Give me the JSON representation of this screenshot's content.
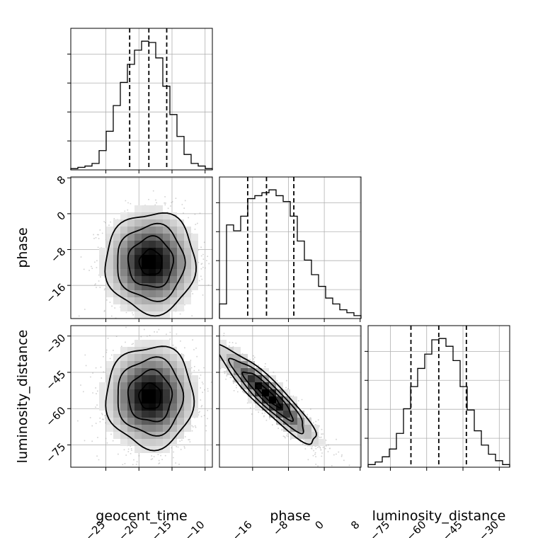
{
  "chart_data": {
    "type": "corner",
    "parameters": [
      "geocent_time",
      "phase",
      "luminosity_distance"
    ],
    "axis_labels": {
      "x": [
        "geocent_time",
        "phase",
        "luminosity_distance"
      ],
      "y": [
        "phase",
        "luminosity_distance"
      ]
    },
    "ranges": [
      [
        -30.3,
        -8.9
      ],
      [
        -23.4,
        8.2
      ],
      [
        -84.2,
        -25.7
      ]
    ],
    "ticks": [
      {
        "values": [
          -25,
          -20,
          -15,
          -10
        ],
        "labels": [
          "−25",
          "−20",
          "−15",
          "−10"
        ]
      },
      {
        "values": [
          -16,
          -8,
          0,
          8
        ],
        "labels": [
          "−16",
          "−8",
          "0",
          "8"
        ]
      },
      {
        "values": [
          -75,
          -60,
          -45,
          -30
        ],
        "labels": [
          "−75",
          "−60",
          "−45",
          "−30"
        ]
      }
    ],
    "grid": true,
    "histograms": [
      {
        "parameter": "geocent_time",
        "bin_edges": [
          -30.3,
          -29.23,
          -28.16,
          -27.09,
          -26.02,
          -24.95,
          -23.88,
          -22.81,
          -21.74,
          -20.67,
          -19.6,
          -18.53,
          -17.46,
          -16.39,
          -15.32,
          -14.25,
          -13.18,
          -12.11,
          -11.04,
          -9.97,
          -8.9
        ],
        "counts": [
          1,
          2,
          3,
          5,
          15,
          30,
          50,
          68,
          82,
          93,
          100,
          99,
          87,
          65,
          43,
          26,
          12,
          5,
          3,
          1
        ],
        "quantiles": [
          -21.4,
          -18.5,
          -15.8
        ]
      },
      {
        "parameter": "phase",
        "bin_edges": [
          -23.4,
          -21.82,
          -20.24,
          -18.66,
          -17.08,
          -15.5,
          -13.92,
          -12.34,
          -10.76,
          -9.18,
          -7.6,
          -6.02,
          -4.44,
          -2.86,
          -1.28,
          0.3,
          1.88,
          3.46,
          5.04,
          6.62,
          8.2
        ],
        "counts": [
          10,
          64,
          60,
          70,
          82,
          84,
          86,
          88,
          84,
          80,
          70,
          53,
          40,
          30,
          22,
          14,
          10,
          6,
          4,
          2
        ],
        "quantiles": [
          -17.1,
          -12.9,
          -6.8
        ]
      },
      {
        "parameter": "luminosity_distance",
        "bin_edges": [
          -84.2,
          -81.275,
          -78.35,
          -75.425,
          -72.5,
          -69.575,
          -66.65,
          -63.725,
          -60.8,
          -57.875,
          -54.95,
          -52.025,
          -49.1,
          -46.175,
          -43.25,
          -40.325,
          -37.4,
          -34.475,
          -31.55,
          -28.625,
          -25.7
        ],
        "counts": [
          2,
          4,
          8,
          14,
          26,
          45,
          62,
          76,
          87,
          98,
          99,
          93,
          82,
          62,
          44,
          28,
          17,
          10,
          5,
          2
        ],
        "quantiles": [
          -66.5,
          -55.0,
          -43.6
        ]
      }
    ],
    "pairs": [
      {
        "x": "geocent_time",
        "y": "phase",
        "center": [
          -18.2,
          -10.9
        ],
        "sigma": [
          3.4,
          5.6
        ],
        "correlation": 0.0,
        "contour_levels_sigma": [
          0.5,
          1.0,
          1.5,
          2.0
        ]
      },
      {
        "x": "geocent_time",
        "y": "luminosity_distance",
        "center": [
          -18.3,
          -55.0
        ],
        "sigma": [
          3.3,
          10.5
        ],
        "correlation": 0.0,
        "contour_levels_sigma": [
          0.5,
          1.0,
          1.5,
          2.0
        ]
      },
      {
        "x": "phase",
        "y": "luminosity_distance",
        "center": [
          -12.5,
          -54.5
        ],
        "sigma": [
          5.5,
          10.0
        ],
        "correlation": -0.92,
        "contour_levels_sigma": [
          0.5,
          1.0,
          1.5,
          2.0
        ]
      }
    ]
  }
}
